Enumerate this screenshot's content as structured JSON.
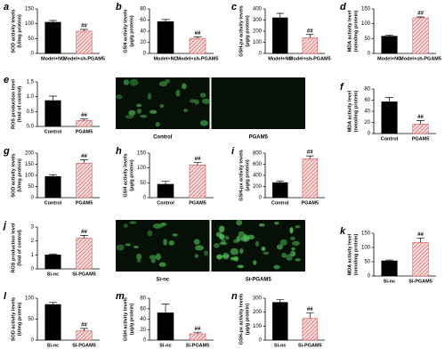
{
  "chart_data": [
    {
      "type": "bar",
      "panel": "a",
      "ylabel": [
        "SOD activity levels",
        "(U/mg protein)"
      ],
      "categories": [
        "Model+NC",
        "Model+sh-PGAM5"
      ],
      "values": [
        105,
        75
      ],
      "errors": [
        6,
        6
      ],
      "annotation": "##",
      "colors": [
        "#000000",
        "#d9534f"
      ],
      "hatch": [
        false,
        true
      ],
      "ylim": [
        0,
        150
      ],
      "yticks": [
        0,
        50,
        100,
        150
      ]
    },
    {
      "type": "bar",
      "panel": "b",
      "ylabel": [
        "GSH activity levels",
        "(μg/g protein)"
      ],
      "categories": [
        "Model+NC",
        "Model+sh-PGAM5"
      ],
      "values": [
        57,
        27
      ],
      "errors": [
        4,
        3
      ],
      "annotation": "##",
      "colors": [
        "#000000",
        "#d9534f"
      ],
      "hatch": [
        false,
        true
      ],
      "ylim": [
        0,
        80
      ],
      "yticks": [
        0,
        20,
        40,
        60,
        80
      ]
    },
    {
      "type": "bar",
      "panel": "c",
      "ylabel": [
        "GSH-px activity levels",
        "(μg/g protein)"
      ],
      "categories": [
        "Model+NC",
        "Model+sh-PGAM5"
      ],
      "values": [
        320,
        140
      ],
      "errors": [
        40,
        30
      ],
      "annotation": "##",
      "colors": [
        "#000000",
        "#d9534f"
      ],
      "hatch": [
        false,
        true
      ],
      "ylim": [
        0,
        400
      ],
      "yticks": [
        0,
        100,
        200,
        300,
        400
      ]
    },
    {
      "type": "bar",
      "panel": "d",
      "ylabel": [
        "MDA activity level",
        "(nmol/mg protein)"
      ],
      "categories": [
        "Model+NC",
        "Model+sh-PGAM5"
      ],
      "values": [
        58,
        120
      ],
      "errors": [
        4,
        3
      ],
      "annotation": "##",
      "colors": [
        "#000000",
        "#d9534f"
      ],
      "hatch": [
        false,
        true
      ],
      "ylim": [
        0,
        150
      ],
      "yticks": [
        0,
        50,
        100,
        150
      ]
    },
    {
      "type": "bar",
      "panel": "e",
      "ylabel": [
        "ROS production level",
        "(fold of control)"
      ],
      "categories": [
        "Control",
        "PGAM5"
      ],
      "values": [
        0.87,
        0.2
      ],
      "errors": [
        0.15,
        0.05
      ],
      "annotation": "##",
      "colors": [
        "#000000",
        "#d9534f"
      ],
      "hatch": [
        false,
        true
      ],
      "ylim": [
        0,
        1.5
      ],
      "yticks": [
        {
          "value": 0,
          "label": "0.0"
        },
        0.5,
        {
          "value": 1,
          "label": "1.0"
        },
        1.5
      ]
    },
    {
      "type": "bar",
      "panel": "f",
      "ylabel": [
        "MDA activity level",
        "(nmol/mg protein)"
      ],
      "categories": [
        "Control",
        "PGAM5"
      ],
      "values": [
        57,
        17
      ],
      "errors": [
        8,
        6
      ],
      "annotation": "##",
      "colors": [
        "#000000",
        "#d9534f"
      ],
      "hatch": [
        false,
        true
      ],
      "ylim": [
        0,
        80
      ],
      "yticks": [
        0,
        20,
        40,
        60,
        80
      ]
    },
    {
      "type": "bar",
      "panel": "g",
      "ylabel": [
        "SOD activity levels",
        "(U/mg protein)"
      ],
      "categories": [
        "Control",
        "PGAM5"
      ],
      "values": [
        95,
        155
      ],
      "errors": [
        8,
        15
      ],
      "annotation": "##",
      "colors": [
        "#000000",
        "#d9534f"
      ],
      "hatch": [
        false,
        true
      ],
      "ylim": [
        0,
        200
      ],
      "yticks": [
        0,
        50,
        100,
        150,
        200
      ]
    },
    {
      "type": "bar",
      "panel": "h",
      "ylabel": [
        "GSH activity levels",
        "(μg/g protein)"
      ],
      "categories": [
        "Control",
        "PGAM5"
      ],
      "values": [
        45,
        110
      ],
      "errors": [
        10,
        8
      ],
      "annotation": "##",
      "colors": [
        "#000000",
        "#d9534f"
      ],
      "hatch": [
        false,
        true
      ],
      "ylim": [
        0,
        150
      ],
      "yticks": [
        0,
        50,
        100,
        150
      ]
    },
    {
      "type": "bar",
      "panel": "i",
      "ylabel": [
        "GSH-px activity levels",
        "(μg/g protein)"
      ],
      "categories": [
        "Control",
        "PGAM5"
      ],
      "values": [
        270,
        700
      ],
      "errors": [
        30,
        50
      ],
      "annotation": "##",
      "colors": [
        "#000000",
        "#d9534f"
      ],
      "hatch": [
        false,
        true
      ],
      "ylim": [
        0,
        800
      ],
      "yticks": [
        0,
        200,
        400,
        600,
        800
      ]
    },
    {
      "type": "bar",
      "panel": "j",
      "ylabel": [
        "ROS production level",
        "(fold of control)"
      ],
      "categories": [
        "Si-nc",
        "Si-PGAM5"
      ],
      "values": [
        1.0,
        2.2
      ],
      "errors": [
        0.07,
        0.2
      ],
      "annotation": "##",
      "colors": [
        "#000000",
        "#d9534f"
      ],
      "hatch": [
        false,
        true
      ],
      "ylim": [
        0,
        3
      ],
      "yticks": [
        0,
        1,
        2,
        3
      ]
    },
    {
      "type": "bar",
      "panel": "k",
      "ylabel": [
        "MDA activity level",
        "(nmol/mg protein)"
      ],
      "categories": [
        "Si-nc",
        "Si-PGAM5"
      ],
      "values": [
        53,
        118
      ],
      "errors": [
        3,
        15
      ],
      "annotation": "##",
      "colors": [
        "#000000",
        "#d9534f"
      ],
      "hatch": [
        false,
        true
      ],
      "ylim": [
        0,
        150
      ],
      "yticks": [
        0,
        50,
        100,
        150
      ]
    },
    {
      "type": "bar",
      "panel": "l",
      "ylabel": [
        "SOD activity levels",
        "(U/mg protein)"
      ],
      "categories": [
        "Si-nc",
        "Si-PGAM5"
      ],
      "values": [
        85,
        22
      ],
      "errors": [
        5,
        6
      ],
      "annotation": "##",
      "colors": [
        "#000000",
        "#d9534f"
      ],
      "hatch": [
        false,
        true
      ],
      "ylim": [
        0,
        100
      ],
      "yticks": [
        0,
        50,
        100
      ]
    },
    {
      "type": "bar",
      "panel": "m",
      "ylabel": [
        "GSH activity levels",
        "(μg/g protein)"
      ],
      "categories": [
        "Si-nc",
        "Si-PGAM5"
      ],
      "values": [
        52,
        12
      ],
      "errors": [
        17,
        3
      ],
      "annotation": "##",
      "colors": [
        "#000000",
        "#d9534f"
      ],
      "hatch": [
        false,
        true
      ],
      "ylim": [
        0,
        80
      ],
      "yticks": [
        0,
        20,
        40,
        60,
        80
      ]
    },
    {
      "type": "bar",
      "panel": "n",
      "ylabel": [
        "GSH-px activity levels",
        "(μg/g protein)"
      ],
      "categories": [
        "Si-nc",
        "Si-PGAM5"
      ],
      "values": [
        270,
        155
      ],
      "errors": [
        20,
        40
      ],
      "annotation": "##",
      "colors": [
        "#000000",
        "#d9534f"
      ],
      "hatch": [
        false,
        true
      ],
      "ylim": [
        0,
        300
      ],
      "yticks": [
        0,
        100,
        200,
        300
      ]
    }
  ],
  "micrographs": [
    {
      "labels": [
        "Control",
        "PGAM5"
      ]
    },
    {
      "labels": [
        "Si-nc",
        "Si-PGAM5"
      ]
    }
  ]
}
